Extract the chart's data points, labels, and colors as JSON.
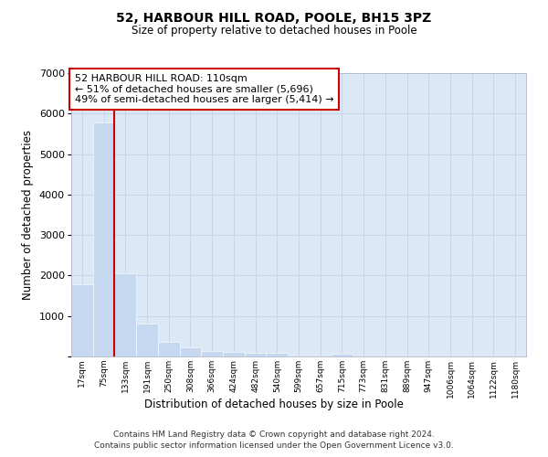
{
  "title1": "52, HARBOUR HILL ROAD, POOLE, BH15 3PZ",
  "title2": "Size of property relative to detached houses in Poole",
  "xlabel": "Distribution of detached houses by size in Poole",
  "ylabel": "Number of detached properties",
  "bar_color": "#c5d8ef",
  "bar_edgecolor": "#c5d8ef",
  "grid_color": "#c8d4e8",
  "background_color": "#dce8f5",
  "vline_color": "#cc0000",
  "annotation_text": "52 HARBOUR HILL ROAD: 110sqm\n← 51% of detached houses are smaller (5,696)\n49% of semi-detached houses are larger (5,414) →",
  "annotation_box_facecolor": "#ffffff",
  "annotation_box_edgecolor": "#cc0000",
  "categories": [
    "17sqm",
    "75sqm",
    "133sqm",
    "191sqm",
    "250sqm",
    "308sqm",
    "366sqm",
    "424sqm",
    "482sqm",
    "540sqm",
    "599sqm",
    "657sqm",
    "715sqm",
    "773sqm",
    "831sqm",
    "889sqm",
    "947sqm",
    "1006sqm",
    "1064sqm",
    "1122sqm",
    "1180sqm"
  ],
  "values": [
    1780,
    5780,
    2060,
    820,
    370,
    220,
    140,
    110,
    90,
    80,
    0,
    0,
    70,
    0,
    0,
    0,
    0,
    0,
    0,
    0,
    0
  ],
  "ylim": [
    0,
    7000
  ],
  "yticks": [
    0,
    1000,
    2000,
    3000,
    4000,
    5000,
    6000,
    7000
  ],
  "vline_x": 1.5,
  "footer1": "Contains HM Land Registry data © Crown copyright and database right 2024.",
  "footer2": "Contains public sector information licensed under the Open Government Licence v3.0."
}
